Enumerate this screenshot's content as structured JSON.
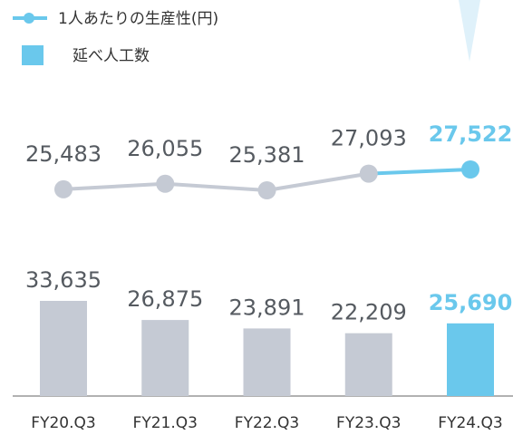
{
  "chart_data": {
    "type": "bar_line",
    "categories": [
      "FY20.Q3",
      "FY21.Q3",
      "FY22.Q3",
      "FY23.Q3",
      "FY24.Q3"
    ],
    "series": [
      {
        "name": "1人あたりの生産性(円)",
        "type": "line",
        "color": "#6ac8ec",
        "point_colors": [
          "#c5cad4",
          "#c5cad4",
          "#c5cad4",
          "#c5cad4",
          "#6ac8ec"
        ],
        "values": [
          25483,
          26055,
          25381,
          27093,
          27522
        ],
        "value_labels": [
          "25,483",
          "26,055",
          "25,381",
          "27,093",
          "27,522"
        ]
      },
      {
        "name": "延べ人工数",
        "type": "bar",
        "color": "#6ac8ec",
        "point_colors": [
          "#c5cad4",
          "#c5cad4",
          "#c5cad4",
          "#c5cad4",
          "#6ac8ec"
        ],
        "values": [
          33635,
          26875,
          23891,
          22209,
          25690
        ],
        "value_labels": [
          "33,635",
          "26,875",
          "23,891",
          "22,209",
          "25,690"
        ]
      }
    ]
  }
}
